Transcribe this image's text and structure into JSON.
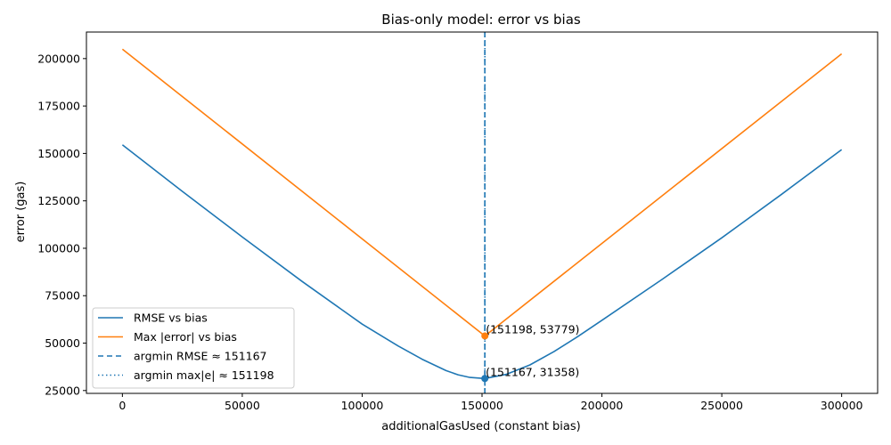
{
  "chart_data": {
    "type": "line",
    "title": "Bias-only model: error vs bias",
    "xlabel": "additionalGasUsed (constant bias)",
    "ylabel": "error (gas)",
    "xlim": [
      -15000,
      315000
    ],
    "ylim": [
      23500,
      214000
    ],
    "xticks": [
      0,
      50000,
      100000,
      150000,
      200000,
      250000,
      300000
    ],
    "yticks": [
      25000,
      50000,
      75000,
      100000,
      125000,
      150000,
      175000,
      200000
    ],
    "grid": false,
    "legend_position": "lower-left",
    "series": [
      {
        "name": "RMSE vs bias",
        "color": "#1f77b4",
        "style": "solid",
        "x": [
          0,
          25000,
          50000,
          75000,
          100000,
          115000,
          125000,
          135000,
          140000,
          145000,
          151167,
          160000,
          170000,
          180000,
          190000,
          200000,
          225000,
          250000,
          275000,
          300000
        ],
        "y": [
          154500,
          130000,
          106000,
          82500,
          60000,
          48500,
          41500,
          35500,
          33300,
          31900,
          31358,
          33500,
          38500,
          45500,
          53500,
          62000,
          83500,
          105500,
          128500,
          152000
        ]
      },
      {
        "name": "Max |error| vs bias",
        "color": "#ff7f0e",
        "style": "solid",
        "x": [
          0,
          151198,
          300000
        ],
        "y": [
          205000,
          53779,
          202500
        ]
      }
    ],
    "vlines": [
      {
        "name": "argmin RMSE ≈ 151167",
        "x": 151167,
        "color": "#1f77b4",
        "style": "dashed"
      },
      {
        "name": "argmin max|e| ≈ 151198",
        "x": 151198,
        "color": "#1f77b4",
        "style": "dotted"
      }
    ],
    "points": [
      {
        "x": 151198,
        "y": 53779,
        "label": "(151198, 53779)",
        "color": "#ff7f0e"
      },
      {
        "x": 151167,
        "y": 31358,
        "label": "(151167, 31358)",
        "color": "#1f77b4"
      }
    ]
  }
}
